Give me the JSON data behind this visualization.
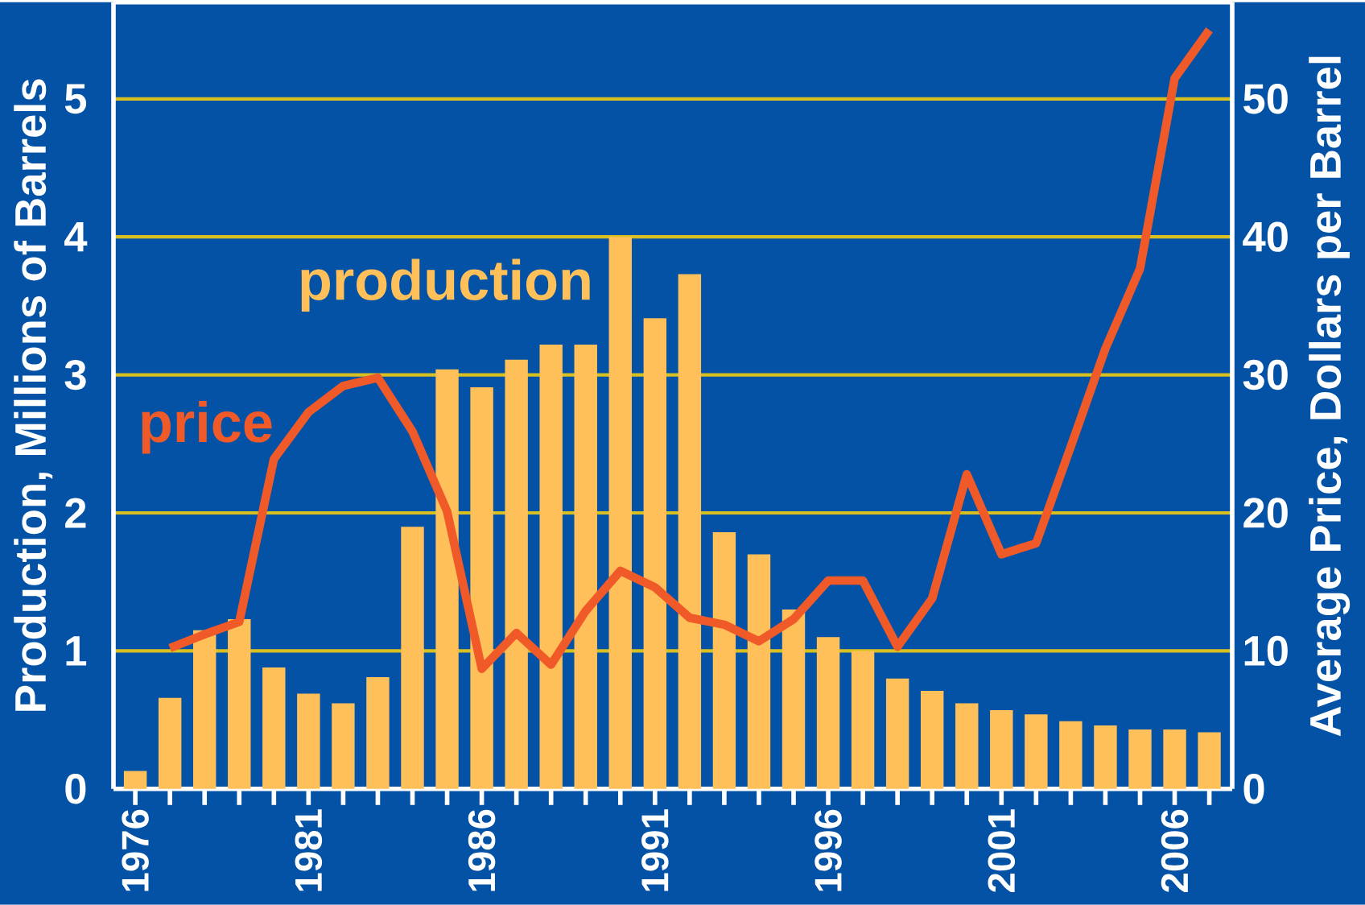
{
  "chart_data": {
    "type": "bar",
    "categories": [
      "1976",
      null,
      null,
      null,
      null,
      "1981",
      null,
      null,
      null,
      null,
      "1986",
      null,
      null,
      null,
      null,
      "1991",
      null,
      null,
      null,
      null,
      "1996",
      null,
      null,
      null,
      null,
      "2001",
      null,
      null,
      null,
      null,
      "2006",
      null
    ],
    "series": [
      {
        "name": "production",
        "color": "#ffc05a",
        "values": [
          0.13,
          0.66,
          1.15,
          1.23,
          0.88,
          0.69,
          0.62,
          0.81,
          1.9,
          3.04,
          2.91,
          3.11,
          3.22,
          3.22,
          4.0,
          3.41,
          3.73,
          1.86,
          1.7,
          1.3,
          1.1,
          1.0,
          0.8,
          0.71,
          0.62,
          0.57,
          0.54,
          0.49,
          0.46,
          0.43,
          0.43,
          0.41
        ]
      },
      {
        "name": "price",
        "type": "line",
        "axis": "y2",
        "color": "#f05a28",
        "values": [
          null,
          10.2,
          11.2,
          12.1,
          23.9,
          27.3,
          29.2,
          29.8,
          25.9,
          20.1,
          8.7,
          11.3,
          9.0,
          12.9,
          15.8,
          14.6,
          12.4,
          11.9,
          10.7,
          12.3,
          15.1,
          15.1,
          10.3,
          13.8,
          22.8,
          17.0,
          17.8,
          24.8,
          31.9,
          37.7,
          51.5,
          55.0
        ]
      }
    ],
    "ylabel": "Production, Millions of Barrels",
    "y2label": "Average Price, Dollars per Barrel",
    "ylim": [
      0,
      5.7
    ],
    "yticks": [
      0,
      1,
      2,
      3,
      4,
      5
    ],
    "y2lim": [
      0,
      57
    ],
    "y2ticks": [
      0,
      10,
      20,
      30,
      40,
      50
    ],
    "grid": "y",
    "marker": "none",
    "line_style": "solid"
  }
}
